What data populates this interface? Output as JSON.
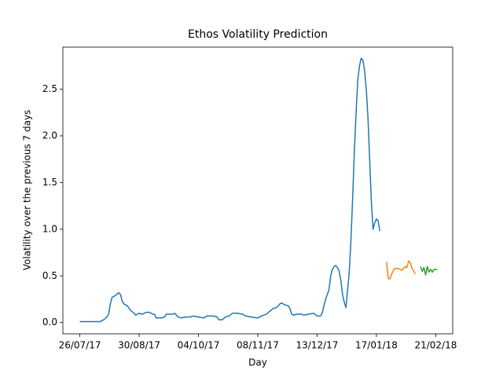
{
  "chart_data": {
    "type": "line",
    "title": "Ethos Volatility Prediction",
    "x_label": "Day",
    "y_label": "Volatility over the previous 7 days",
    "xlim": [
      "16/07/17",
      "03/03/18"
    ],
    "xticks": [
      "26/07/17",
      "30/08/17",
      "04/10/17",
      "08/11/17",
      "13/12/17",
      "17/01/18",
      "21/02/18"
    ],
    "ylim": [
      -0.12,
      2.95
    ],
    "yticks": [
      {
        "value": 0,
        "label": "0.0"
      },
      0.5,
      {
        "value": 1,
        "label": "1.0"
      },
      1.5,
      {
        "value": 2,
        "label": "2.0"
      },
      2.5
    ],
    "grid": false,
    "series": [
      {
        "color": "#1f77b4",
        "x": [
          "26/07/17",
          "31/07/17",
          "05/08/17",
          "07/08/17",
          "09/08/17",
          "11/08/17",
          "12/08/17",
          "13/08/17",
          "14/08/17",
          "16/08/17",
          "18/08/17",
          "19/08/17",
          "20/08/17",
          "21/08/17",
          "23/08/17",
          "25/08/17",
          "27/08/17",
          "28/08/17",
          "30/08/17",
          "01/09/17",
          "03/09/17",
          "05/09/17",
          "07/09/17",
          "08/09/17",
          "09/09/17",
          "12/09/17",
          "14/09/17",
          "15/09/17",
          "19/09/17",
          "20/09/17",
          "22/09/17",
          "24/09/17",
          "26/09/17",
          "29/09/17",
          "01/10/17",
          "04/10/17",
          "07/10/17",
          "09/10/17",
          "13/10/17",
          "15/10/17",
          "16/10/17",
          "18/10/17",
          "20/10/17",
          "22/10/17",
          "24/10/17",
          "27/10/17",
          "30/10/17",
          "01/11/17",
          "04/11/17",
          "08/11/17",
          "10/11/17",
          "13/11/17",
          "15/11/17",
          "17/11/17",
          "19/11/17",
          "21/11/17",
          "22/11/17",
          "24/11/17",
          "26/11/17",
          "27/11/17",
          "28/11/17",
          "29/11/17",
          "01/12/17",
          "04/12/17",
          "05/12/17",
          "08/12/17",
          "11/12/17",
          "13/12/17",
          "15/12/17",
          "16/12/17",
          "18/12/17",
          "20/12/17",
          "21/12/17",
          "22/12/17",
          "23/12/17",
          "24/12/17",
          "25/12/17",
          "26/12/17",
          "27/12/17",
          "28/12/17",
          "29/12/17",
          "30/12/17",
          "31/12/17",
          "01/01/18",
          "02/01/18",
          "03/01/18",
          "04/01/18",
          "05/01/18",
          "06/01/18",
          "07/01/18",
          "08/01/18",
          "09/01/18",
          "10/01/18",
          "11/01/18",
          "12/01/18",
          "13/01/18",
          "14/01/18",
          "15/01/18",
          "16/01/18",
          "17/01/18",
          "18/01/18",
          "19/01/18"
        ],
        "values": [
          0.01,
          0.01,
          0.01,
          0.01,
          0.03,
          0.06,
          0.09,
          0.2,
          0.27,
          0.29,
          0.32,
          0.3,
          0.23,
          0.2,
          0.18,
          0.13,
          0.1,
          0.08,
          0.1,
          0.09,
          0.11,
          0.11,
          0.09,
          0.09,
          0.05,
          0.05,
          0.06,
          0.09,
          0.09,
          0.1,
          0.06,
          0.05,
          0.06,
          0.06,
          0.07,
          0.06,
          0.05,
          0.07,
          0.07,
          0.06,
          0.03,
          0.03,
          0.06,
          0.07,
          0.1,
          0.1,
          0.09,
          0.07,
          0.06,
          0.05,
          0.07,
          0.09,
          0.12,
          0.15,
          0.16,
          0.2,
          0.21,
          0.19,
          0.18,
          0.15,
          0.09,
          0.08,
          0.09,
          0.09,
          0.08,
          0.09,
          0.1,
          0.07,
          0.07,
          0.1,
          0.25,
          0.35,
          0.5,
          0.57,
          0.6,
          0.61,
          0.59,
          0.55,
          0.45,
          0.3,
          0.22,
          0.16,
          0.35,
          0.55,
          0.9,
          1.35,
          1.85,
          2.25,
          2.6,
          2.75,
          2.83,
          2.81,
          2.7,
          2.5,
          2.2,
          1.75,
          1.3,
          1.0,
          1.07,
          1.11,
          1.09,
          0.98
        ]
      },
      {
        "color": "#ff7f0e",
        "x": [
          "23/01/18",
          "24/01/18",
          "25/01/18",
          "26/01/18",
          "27/01/18",
          "28/01/18",
          "30/01/18",
          "01/02/18",
          "02/02/18",
          "03/02/18",
          "04/02/18",
          "05/02/18",
          "06/02/18",
          "07/02/18",
          "09/02/18"
        ],
        "values": [
          0.65,
          0.47,
          0.47,
          0.52,
          0.56,
          0.58,
          0.58,
          0.56,
          0.58,
          0.6,
          0.59,
          0.66,
          0.64,
          0.58,
          0.52
        ]
      },
      {
        "color": "#2ca02c",
        "x": [
          "12/02/18",
          "13/02/18",
          "14/02/18",
          "15/02/18",
          "16/02/18",
          "17/02/18",
          "18/02/18",
          "19/02/18",
          "20/02/18",
          "22/02/18"
        ],
        "values": [
          0.6,
          0.55,
          0.59,
          0.51,
          0.6,
          0.54,
          0.57,
          0.54,
          0.57,
          0.57
        ]
      }
    ]
  }
}
